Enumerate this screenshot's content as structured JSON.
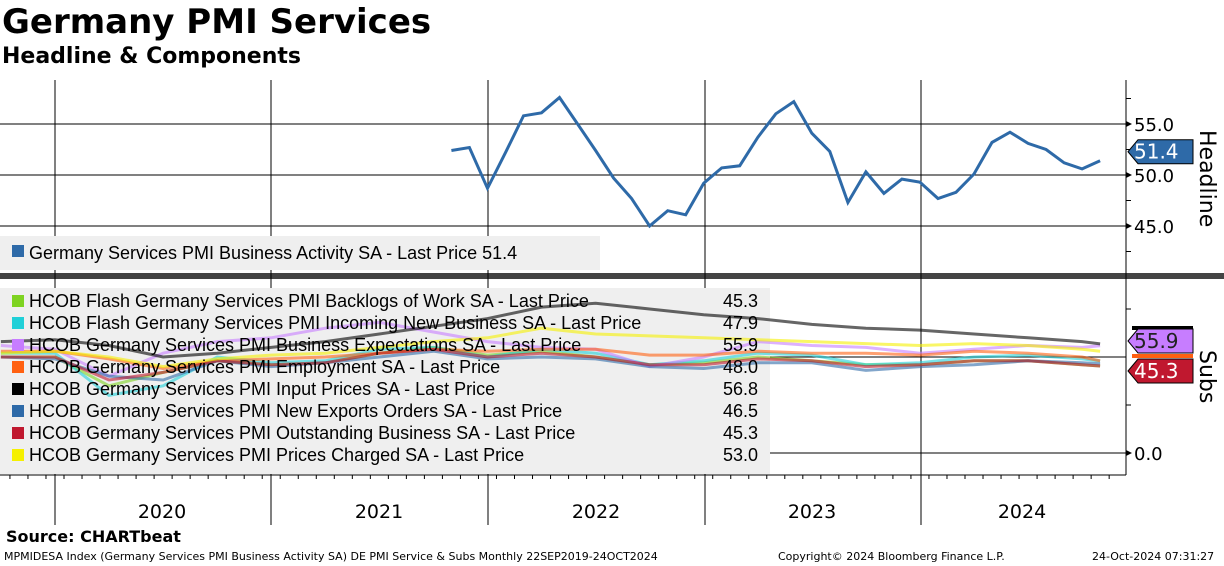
{
  "title": "Germany PMI Services",
  "subtitle": "Headline & Components",
  "source": "Source: CHARTbeat",
  "footer": {
    "left": "MPMIDESA Index (Germany Services PMI Business Activity SA) DE PMI Service & Subs  Monthly 22SEP2019-24OCT2024",
    "center": "Copyright© 2024 Bloomberg Finance L.P.",
    "right": "24-Oct-2024 07:31:27"
  },
  "chart_data": [
    {
      "type": "line",
      "panel": "Headline",
      "ylabel": "Headline",
      "ylim": [
        40,
        58.5
      ],
      "yticks": [
        "55.0",
        "50.0",
        "45.0"
      ],
      "ytick_values": [
        55,
        50,
        45
      ],
      "x_start": "2021-10",
      "frequency": "monthly",
      "series": [
        {
          "name": "Germany Services PMI Business Activity SA - Last Price 51.4",
          "color": "#2e6aa8",
          "last_label": "51.4",
          "values": [
            52.4,
            52.7,
            48.7,
            52.2,
            55.8,
            56.1,
            57.6,
            55.0,
            52.4,
            49.7,
            47.7,
            45.0,
            46.5,
            46.1,
            49.2,
            50.7,
            50.9,
            53.7,
            56.0,
            57.2,
            54.1,
            52.3,
            47.3,
            50.3,
            48.2,
            49.6,
            49.3,
            47.7,
            48.3,
            50.1,
            53.2,
            54.2,
            53.1,
            52.5,
            51.2,
            50.6,
            51.4
          ]
        }
      ]
    },
    {
      "type": "line",
      "panel": "Subs",
      "ylabel": "Subs",
      "ylim": [
        -12,
        90
      ],
      "yticks": [
        "0.0"
      ],
      "ytick_values": [
        0
      ],
      "x": [
        "2019-09",
        "2019-12",
        "2020-03",
        "2020-06",
        "2020-09",
        "2020-12",
        "2021-03",
        "2021-06",
        "2021-09",
        "2021-12",
        "2022-03",
        "2022-06",
        "2022-09",
        "2022-12",
        "2023-03",
        "2023-06",
        "2023-09",
        "2023-12",
        "2024-03",
        "2024-06",
        "2024-09",
        "2024-10"
      ],
      "value_labels": [
        "55.9",
        "45.3"
      ],
      "series": [
        {
          "name": "HCOB Flash Germany Services PMI Backlogs of Work SA - Last Price",
          "last": "45.3",
          "color": "#7ed321",
          "values": [
            50,
            50,
            35,
            42,
            48,
            46,
            47,
            52,
            55,
            51,
            53,
            50,
            46,
            47,
            50,
            48,
            46,
            46,
            48,
            48,
            46,
            45.3
          ]
        },
        {
          "name": "HCOB Flash Germany Services PMI Incoming New Business SA - Last Price",
          "last": "47.9",
          "color": "#20d0d8",
          "values": [
            52,
            52,
            30,
            35,
            50,
            47,
            48,
            54,
            55,
            50,
            54,
            52,
            46,
            48,
            52,
            51,
            46,
            47,
            50,
            51,
            49,
            47.9
          ]
        },
        {
          "name": "HCOB Germany Services PMI Business Expectations SA - Last Price",
          "last": "55.9",
          "color": "#c77dff",
          "values": [
            56,
            54,
            40,
            52,
            58,
            60,
            65,
            68,
            63,
            58,
            55,
            54,
            45,
            50,
            58,
            56,
            55,
            52,
            54,
            56,
            55,
            55.9
          ]
        },
        {
          "name": "HCOB Germany Services PMI Employment SA - Last Price",
          "last": "48.0",
          "color": "#ff6010",
          "values": [
            53,
            53,
            49,
            44,
            48,
            49,
            50,
            52,
            54,
            53,
            54,
            54,
            51,
            51,
            53,
            52,
            52,
            51,
            53,
            52,
            50,
            48.0
          ]
        },
        {
          "name": "HCOB Germany Services PMI Input Prices SA - Last Price",
          "last": "56.8",
          "color": "#000000",
          "values": [
            58,
            59,
            56,
            50,
            52,
            55,
            58,
            62,
            66,
            70,
            76,
            78,
            75,
            72,
            70,
            67,
            65,
            64,
            62,
            60,
            58,
            56.8
          ]
        },
        {
          "name": "HCOB Germany Services PMI New Exports Orders SA - Last Price",
          "last": "46.5",
          "color": "#2e6aa8",
          "values": [
            50,
            49,
            40,
            38,
            48,
            45,
            47,
            50,
            53,
            49,
            50,
            49,
            45,
            44,
            47,
            47,
            43,
            45,
            46,
            48,
            47,
            46.5
          ]
        },
        {
          "name": "HCOB Germany Services PMI Outstanding Business SA - Last Price",
          "last": "45.3",
          "color": "#c0182f",
          "values": [
            50,
            50,
            38,
            42,
            48,
            46,
            47,
            52,
            54,
            50,
            52,
            50,
            46,
            46,
            49,
            48,
            45,
            46,
            48,
            48,
            46,
            45.3
          ]
        },
        {
          "name": "HCOB Germany Services PMI Prices Charged SA - Last Price",
          "last": "53.0",
          "color": "#f5f000",
          "values": [
            52,
            53,
            50,
            45,
            49,
            51,
            52,
            55,
            58,
            60,
            65,
            62,
            61,
            60,
            59,
            58,
            57,
            56,
            57,
            56,
            54,
            53.0
          ]
        }
      ]
    }
  ],
  "xaxis": {
    "labels": [
      "2020",
      "2021",
      "2022",
      "2023",
      "2024"
    ]
  }
}
